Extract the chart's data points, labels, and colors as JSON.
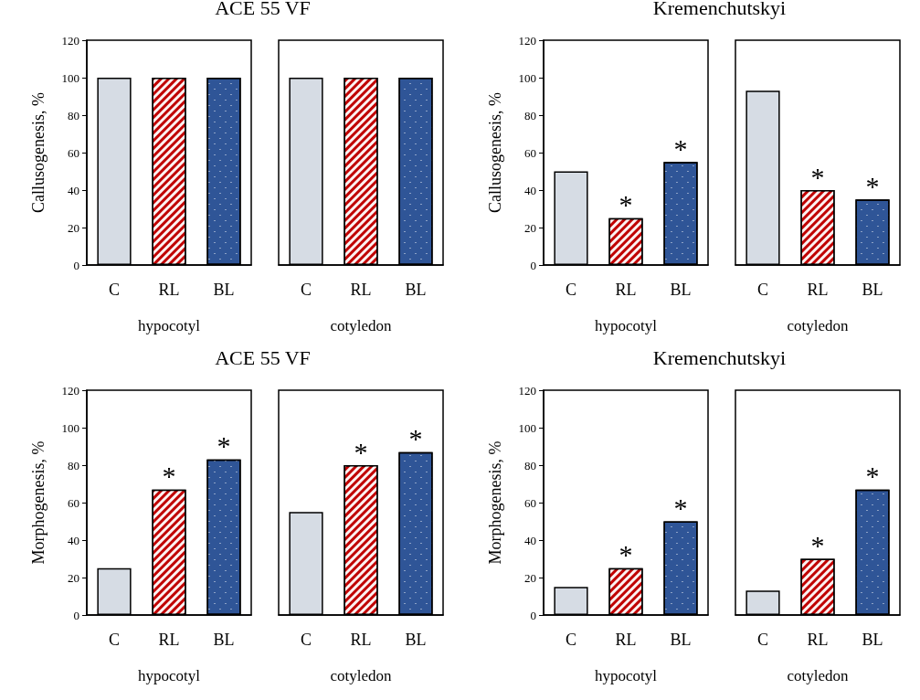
{
  "chart_data": [
    {
      "type": "bar",
      "title": "ACE 55 VF",
      "ylabel": "Callusogenesis, %",
      "xlabel": "hypocotyl",
      "categories": [
        "C",
        "RL",
        "BL"
      ],
      "values": [
        100,
        100,
        100
      ],
      "colors": [
        "#d6dce4",
        "#c00000",
        "#2f5597"
      ],
      "ylim": [
        0,
        120
      ],
      "yticks": [
        0,
        20,
        40,
        60,
        80,
        100,
        120
      ],
      "grid": false
    },
    {
      "type": "bar",
      "xlabel": "cotyledon",
      "categories": [
        "C",
        "RL",
        "BL"
      ],
      "values": [
        100,
        100,
        100
      ],
      "colors": [
        "#d6dce4",
        "#c00000",
        "#2f5597"
      ],
      "ylim": [
        0,
        120
      ],
      "tick_labels": "x",
      "grid": false
    },
    {
      "type": "bar",
      "title": "Kremenchutskyi",
      "ylabel": "Callusogenesis, %",
      "xlabel": "hypocotyl",
      "categories": [
        "C",
        "RL",
        "BL"
      ],
      "values": [
        50,
        25,
        55
      ],
      "colors": [
        "#d6dce4",
        "#c00000",
        "#2f5597"
      ],
      "ylim": [
        0,
        120
      ],
      "yticks": [
        0,
        20,
        40,
        60,
        80,
        100,
        120
      ],
      "grid": false,
      "annotations": [
        {
          "text": "*",
          "x": "RL",
          "y": 25
        },
        {
          "text": "*",
          "x": "BL",
          "y": 55
        }
      ]
    },
    {
      "type": "bar",
      "xlabel": "cotyledon",
      "categories": [
        "C",
        "RL",
        "BL"
      ],
      "values": [
        93,
        40,
        35
      ],
      "colors": [
        "#d6dce4",
        "#c00000",
        "#2f5597"
      ],
      "ylim": [
        0,
        120
      ],
      "tick_labels": "x",
      "grid": false,
      "annotations": [
        {
          "text": "*",
          "x": "RL",
          "y": 40
        },
        {
          "text": "*",
          "x": "BL",
          "y": 35
        }
      ]
    },
    {
      "type": "bar",
      "title": "ACE 55 VF",
      "ylabel": "Morphogenesis, %",
      "xlabel": "hypocotyl",
      "categories": [
        "C",
        "RL",
        "BL"
      ],
      "values": [
        25,
        67,
        83
      ],
      "colors": [
        "#d6dce4",
        "#c00000",
        "#2f5597"
      ],
      "ylim": [
        0,
        120
      ],
      "yticks": [
        0,
        20,
        40,
        60,
        80,
        100,
        120
      ],
      "grid": false,
      "annotations": [
        {
          "text": "*",
          "x": "RL",
          "y": 67
        },
        {
          "text": "*",
          "x": "BL",
          "y": 83
        }
      ]
    },
    {
      "type": "bar",
      "xlabel": "cotyledon",
      "categories": [
        "C",
        "RL",
        "BL"
      ],
      "values": [
        55,
        80,
        87
      ],
      "colors": [
        "#d6dce4",
        "#c00000",
        "#2f5597"
      ],
      "ylim": [
        0,
        120
      ],
      "tick_labels": "x",
      "grid": false,
      "annotations": [
        {
          "text": "*",
          "x": "RL",
          "y": 80
        },
        {
          "text": "*",
          "x": "BL",
          "y": 87
        }
      ]
    },
    {
      "type": "bar",
      "title": "Kremenchutskyi",
      "ylabel": "Morphogenesis, %",
      "xlabel": "hypocotyl",
      "categories": [
        "C",
        "RL",
        "BL"
      ],
      "values": [
        15,
        25,
        50
      ],
      "colors": [
        "#d6dce4",
        "#c00000",
        "#2f5597"
      ],
      "ylim": [
        0,
        120
      ],
      "yticks": [
        0,
        20,
        40,
        60,
        80,
        100,
        120
      ],
      "grid": false,
      "annotations": [
        {
          "text": "*",
          "x": "RL",
          "y": 25
        },
        {
          "text": "*",
          "x": "BL",
          "y": 50
        }
      ]
    },
    {
      "type": "bar",
      "xlabel": "cotyledon",
      "categories": [
        "C",
        "RL",
        "BL"
      ],
      "values": [
        13,
        30,
        67
      ],
      "colors": [
        "#d6dce4",
        "#c00000",
        "#2f5597"
      ],
      "ylim": [
        0,
        120
      ],
      "tick_labels": "x",
      "grid": false,
      "annotations": [
        {
          "text": "*",
          "x": "RL",
          "y": 30
        },
        {
          "text": "*",
          "x": "BL",
          "y": 67
        }
      ]
    }
  ]
}
